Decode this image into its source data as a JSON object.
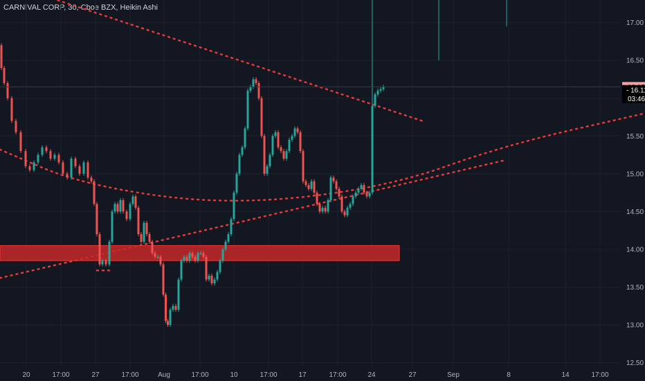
{
  "title": "CARNIVAL CORP, 30, Cboe BZX, Heikin Ashi",
  "colors": {
    "background": "#131722",
    "grid": "#1e222d",
    "up": "#26a69a",
    "down": "#ef5350",
    "trendline": "#e53935",
    "zone": "#c62828",
    "axis_text": "#b2b5be"
  },
  "chart_data": {
    "type": "candlestick",
    "style": "Heikin Ashi",
    "grid": true,
    "y_ticks": [
      "17.00",
      "16.50",
      "16.00",
      "15.50",
      "15.00",
      "14.50",
      "14.00",
      "13.50",
      "13.00",
      "12.50"
    ],
    "x_ticks": [
      "20",
      "17:00",
      "27",
      "17:00",
      "Aug",
      "17:00",
      "10",
      "17:00",
      "17",
      "17:00",
      "24",
      "27",
      "Sep",
      "8",
      "14",
      "17:00"
    ],
    "price_labels": {
      "last_price": "16.15",
      "current_price": "16.11",
      "countdown": "03:46"
    },
    "ylim": [
      12.44,
      17.3
    ],
    "price_path": [
      [
        0,
        16.7
      ],
      [
        4,
        16.4
      ],
      [
        8,
        16.2
      ],
      [
        14,
        16.0
      ],
      [
        20,
        15.7
      ],
      [
        26,
        15.55
      ],
      [
        34,
        15.3
      ],
      [
        40,
        15.1
      ],
      [
        46,
        15.05
      ],
      [
        52,
        15.15
      ],
      [
        58,
        15.25
      ],
      [
        64,
        15.35
      ],
      [
        70,
        15.3
      ],
      [
        76,
        15.2
      ],
      [
        82,
        15.25
      ],
      [
        88,
        15.15
      ],
      [
        94,
        15.0
      ],
      [
        100,
        14.95
      ],
      [
        106,
        15.2
      ],
      [
        112,
        15.1
      ],
      [
        118,
        15.0
      ],
      [
        124,
        15.15
      ],
      [
        130,
        14.95
      ],
      [
        134,
        14.9
      ],
      [
        138,
        14.6
      ],
      [
        142,
        14.2
      ],
      [
        146,
        13.8
      ],
      [
        150,
        13.85
      ],
      [
        156,
        13.8
      ],
      [
        160,
        14.1
      ],
      [
        164,
        14.5
      ],
      [
        168,
        14.6
      ],
      [
        172,
        14.5
      ],
      [
        176,
        14.65
      ],
      [
        180,
        14.5
      ],
      [
        186,
        14.4
      ],
      [
        190,
        14.6
      ],
      [
        194,
        14.7
      ],
      [
        198,
        14.55
      ],
      [
        202,
        14.2
      ],
      [
        206,
        14.1
      ],
      [
        210,
        14.35
      ],
      [
        214,
        14.2
      ],
      [
        218,
        14.1
      ],
      [
        222,
        13.95
      ],
      [
        226,
        13.9
      ],
      [
        230,
        13.9
      ],
      [
        234,
        13.8
      ],
      [
        238,
        13.4
      ],
      [
        241,
        13.05
      ],
      [
        244,
        13.0
      ],
      [
        248,
        13.2
      ],
      [
        252,
        13.25
      ],
      [
        256,
        13.2
      ],
      [
        260,
        13.6
      ],
      [
        264,
        13.85
      ],
      [
        268,
        13.9
      ],
      [
        272,
        13.85
      ],
      [
        276,
        13.95
      ],
      [
        280,
        13.9
      ],
      [
        284,
        13.85
      ],
      [
        288,
        13.95
      ],
      [
        292,
        13.95
      ],
      [
        296,
        13.9
      ],
      [
        300,
        13.6
      ],
      [
        304,
        13.65
      ],
      [
        308,
        13.55
      ],
      [
        312,
        13.6
      ],
      [
        316,
        13.7
      ],
      [
        320,
        13.85
      ],
      [
        324,
        14.0
      ],
      [
        328,
        14.1
      ],
      [
        332,
        14.2
      ],
      [
        336,
        14.4
      ],
      [
        340,
        14.75
      ],
      [
        344,
        15.0
      ],
      [
        348,
        15.25
      ],
      [
        352,
        15.35
      ],
      [
        356,
        15.6
      ],
      [
        360,
        16.1
      ],
      [
        364,
        16.15
      ],
      [
        368,
        16.25
      ],
      [
        372,
        16.2
      ],
      [
        376,
        16.0
      ],
      [
        380,
        15.5
      ],
      [
        384,
        15.0
      ],
      [
        388,
        15.1
      ],
      [
        392,
        15.25
      ],
      [
        396,
        15.5
      ],
      [
        400,
        15.55
      ],
      [
        404,
        15.35
      ],
      [
        408,
        15.3
      ],
      [
        412,
        15.2
      ],
      [
        416,
        15.3
      ],
      [
        420,
        15.45
      ],
      [
        424,
        15.5
      ],
      [
        428,
        15.6
      ],
      [
        432,
        15.55
      ],
      [
        436,
        15.3
      ],
      [
        440,
        14.9
      ],
      [
        444,
        14.85
      ],
      [
        448,
        14.8
      ],
      [
        452,
        14.9
      ],
      [
        456,
        14.75
      ],
      [
        460,
        14.6
      ],
      [
        464,
        14.5
      ],
      [
        468,
        14.55
      ],
      [
        472,
        14.5
      ],
      [
        476,
        14.65
      ],
      [
        480,
        14.95
      ],
      [
        484,
        14.9
      ],
      [
        488,
        14.8
      ],
      [
        492,
        14.7
      ],
      [
        496,
        14.5
      ],
      [
        500,
        14.45
      ],
      [
        504,
        14.55
      ],
      [
        508,
        14.6
      ],
      [
        512,
        14.7
      ],
      [
        516,
        14.75
      ],
      [
        520,
        14.8
      ],
      [
        524,
        14.85
      ],
      [
        528,
        14.75
      ],
      [
        532,
        14.7
      ],
      [
        536,
        14.75
      ],
      [
        540,
        15.9
      ],
      [
        544,
        16.05
      ],
      [
        548,
        16.1
      ],
      [
        552,
        16.12
      ],
      [
        556,
        16.15
      ]
    ],
    "spikes": [
      {
        "x": 538,
        "from": 15.9,
        "to": 17.3
      },
      {
        "x": 634,
        "from": 16.5,
        "to": 17.3
      },
      {
        "x": 732,
        "from": 16.95,
        "to": 17.3
      }
    ],
    "drawings": [
      {
        "kind": "dotted-line",
        "points": [
          [
            0,
            17.55
          ],
          [
            610,
            15.7
          ]
        ]
      },
      {
        "kind": "dotted-line",
        "points": [
          [
            0,
            13.62
          ],
          [
            730,
            15.18
          ]
        ]
      },
      {
        "kind": "dotted-curve",
        "points": [
          [
            0,
            15.32
          ],
          [
            120,
            14.85
          ],
          [
            330,
            14.58
          ],
          [
            560,
            14.82
          ],
          [
            730,
            15.38
          ],
          [
            932,
            15.8
          ]
        ]
      },
      {
        "kind": "dotted-line",
        "points": [
          [
            140,
            13.72
          ],
          [
            162,
            13.72
          ]
        ]
      },
      {
        "kind": "zone",
        "x": [
          0,
          577
        ],
        "y": [
          13.85,
          14.05
        ]
      }
    ]
  }
}
